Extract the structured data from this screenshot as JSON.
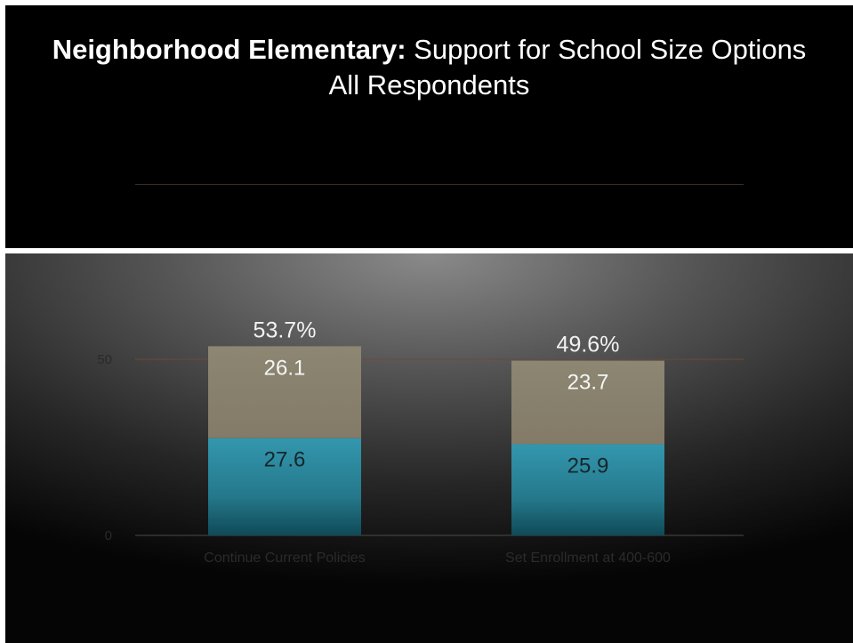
{
  "title": {
    "bold": "Neighborhood Elementary:",
    "rest": " Support for School Size Options",
    "line2": "All Respondents"
  },
  "chart_data": {
    "type": "bar",
    "stacked": true,
    "categories": [
      "Continue Current Policies",
      "Set Enrollment at 400-600"
    ],
    "series": [
      {
        "values": [
          27.6,
          25.9
        ],
        "color": "#2f8fa5"
      },
      {
        "values": [
          26.1,
          23.7
        ],
        "color": "#8a8270"
      }
    ],
    "totals": [
      "53.7%",
      "49.6%"
    ],
    "y_ticks": [
      0,
      50
    ],
    "ylim": [
      0,
      60
    ],
    "grid": true
  }
}
